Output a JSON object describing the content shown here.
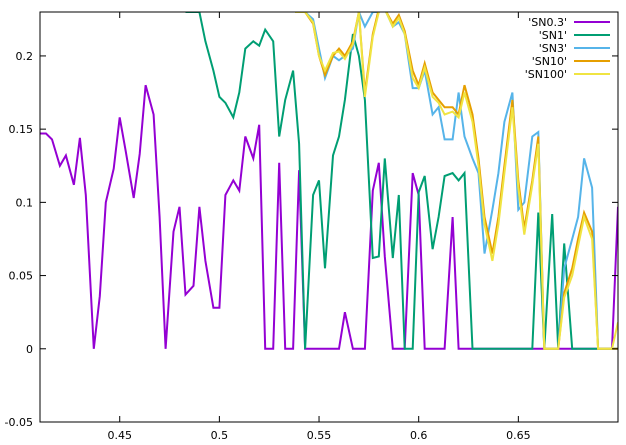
{
  "chart_data": {
    "type": "line",
    "title": "",
    "xlabel": "",
    "ylabel": "",
    "xlim": [
      0.41,
      0.7
    ],
    "ylim": [
      -0.05,
      0.23
    ],
    "xticks": [
      "0.45",
      "0.5",
      "0.55",
      "0.6",
      "0.65"
    ],
    "yticks": [
      "0.2",
      "0.15",
      "0.1",
      "0.05",
      "0",
      "-0.05"
    ],
    "xtick_values": [
      0.45,
      0.5,
      0.55,
      0.6,
      0.65
    ],
    "ytick_values": [
      0.2,
      0.15,
      0.1,
      0.05,
      0,
      -0.05
    ],
    "legend_position": "top-right",
    "grid": false,
    "series": [
      {
        "name": "'SN0.3'",
        "color": "#9400d3",
        "x": [
          0.41,
          0.413,
          0.416,
          0.42,
          0.423,
          0.427,
          0.43,
          0.433,
          0.437,
          0.44,
          0.443,
          0.447,
          0.45,
          0.453,
          0.457,
          0.46,
          0.463,
          0.467,
          0.47,
          0.473,
          0.477,
          0.48,
          0.483,
          0.487,
          0.49,
          0.493,
          0.497,
          0.5,
          0.503,
          0.507,
          0.51,
          0.513,
          0.517,
          0.52,
          0.523,
          0.527,
          0.53,
          0.533,
          0.537,
          0.54,
          0.543,
          0.547,
          0.55,
          0.553,
          0.557,
          0.56,
          0.563,
          0.567,
          0.57,
          0.573,
          0.577,
          0.58,
          0.583,
          0.587,
          0.59,
          0.593,
          0.597,
          0.6,
          0.603,
          0.607,
          0.61,
          0.613,
          0.617,
          0.62,
          0.623,
          0.627,
          0.63,
          0.633,
          0.637,
          0.64,
          0.643,
          0.647,
          0.65,
          0.653,
          0.657,
          0.66,
          0.663,
          0.667,
          0.67,
          0.673,
          0.677,
          0.68,
          0.683,
          0.687,
          0.69,
          0.693,
          0.697,
          0.7
        ],
        "y": [
          0.147,
          0.147,
          0.143,
          0.125,
          0.132,
          0.112,
          0.144,
          0.105,
          0.0,
          0.036,
          0.1,
          0.123,
          0.158,
          0.135,
          0.103,
          0.133,
          0.18,
          0.16,
          0.09,
          0.0,
          0.08,
          0.097,
          0.037,
          0.043,
          0.097,
          0.06,
          0.028,
          0.028,
          0.105,
          0.115,
          0.108,
          0.145,
          0.13,
          0.153,
          0.0,
          0.0,
          0.127,
          0.0,
          0.0,
          0.122,
          0.0,
          0.0,
          0.0,
          0.0,
          0.0,
          0.0,
          0.025,
          0.0,
          0.0,
          0.0,
          0.108,
          0.127,
          0.063,
          0.0,
          0.0,
          0.0,
          0.12,
          0.105,
          0.0,
          0.0,
          0.0,
          0.0,
          0.09,
          0.0,
          0.0,
          0.0,
          0.0,
          0.0,
          0.0,
          0.0,
          0.0,
          0.0,
          0.0,
          0.0,
          0.0,
          0.0,
          0.0,
          0.0,
          0.0,
          0.0,
          0.0,
          0.0,
          0.0,
          0.0,
          0.0,
          0.0,
          0.0,
          0.097
        ]
      },
      {
        "name": "'SN1'",
        "color": "#009e73",
        "x": [
          0.483,
          0.487,
          0.49,
          0.493,
          0.497,
          0.5,
          0.503,
          0.507,
          0.51,
          0.513,
          0.517,
          0.52,
          0.523,
          0.527,
          0.53,
          0.533,
          0.537,
          0.54,
          0.543,
          0.547,
          0.55,
          0.553,
          0.557,
          0.56,
          0.563,
          0.567,
          0.57,
          0.573,
          0.577,
          0.58,
          0.583,
          0.587,
          0.59,
          0.593,
          0.597,
          0.6,
          0.603,
          0.607,
          0.61,
          0.613,
          0.617,
          0.62,
          0.623,
          0.627,
          0.63,
          0.633,
          0.637,
          0.64,
          0.643,
          0.647,
          0.65,
          0.653,
          0.657,
          0.66,
          0.663,
          0.667,
          0.67,
          0.673,
          0.677,
          0.68,
          0.683,
          0.687,
          0.69,
          0.693,
          0.697,
          0.7
        ],
        "y": [
          0.23,
          0.23,
          0.23,
          0.21,
          0.19,
          0.172,
          0.168,
          0.158,
          0.175,
          0.205,
          0.21,
          0.207,
          0.218,
          0.21,
          0.145,
          0.17,
          0.19,
          0.14,
          0.0,
          0.105,
          0.115,
          0.055,
          0.132,
          0.145,
          0.17,
          0.215,
          0.2,
          0.17,
          0.062,
          0.063,
          0.13,
          0.062,
          0.105,
          0.0,
          0.0,
          0.107,
          0.118,
          0.068,
          0.09,
          0.118,
          0.12,
          0.115,
          0.12,
          0.0,
          0.0,
          0.0,
          0.0,
          0.0,
          0.0,
          0.0,
          0.0,
          0.0,
          0.0,
          0.093,
          0.0,
          0.092,
          0.0,
          0.072,
          0.0,
          0.0,
          0.0,
          0.0,
          0.0,
          0.0,
          0.0,
          0.0
        ]
      },
      {
        "name": "'SN3'",
        "color": "#56b4e9",
        "x": [
          0.538,
          0.54,
          0.543,
          0.547,
          0.55,
          0.553,
          0.557,
          0.56,
          0.563,
          0.567,
          0.57,
          0.573,
          0.577,
          0.58,
          0.583,
          0.587,
          0.59,
          0.593,
          0.597,
          0.6,
          0.603,
          0.607,
          0.61,
          0.613,
          0.617,
          0.62,
          0.623,
          0.627,
          0.63,
          0.633,
          0.637,
          0.64,
          0.643,
          0.647,
          0.65,
          0.653,
          0.657,
          0.66,
          0.663,
          0.667,
          0.67,
          0.673,
          0.677,
          0.68,
          0.683,
          0.687,
          0.69,
          0.693,
          0.697,
          0.7
        ],
        "y": [
          0.23,
          0.23,
          0.23,
          0.225,
          0.205,
          0.185,
          0.2,
          0.197,
          0.2,
          0.205,
          0.23,
          0.22,
          0.23,
          0.23,
          0.232,
          0.22,
          0.223,
          0.215,
          0.178,
          0.178,
          0.19,
          0.16,
          0.165,
          0.143,
          0.143,
          0.175,
          0.145,
          0.13,
          0.12,
          0.065,
          0.095,
          0.12,
          0.155,
          0.175,
          0.095,
          0.1,
          0.145,
          0.148,
          0.0,
          0.0,
          0.0,
          0.055,
          0.075,
          0.09,
          0.13,
          0.11,
          0.0,
          0.0,
          0.0,
          0.0
        ]
      },
      {
        "name": "'SN10'",
        "color": "#e69f00",
        "x": [
          0.538,
          0.54,
          0.543,
          0.547,
          0.55,
          0.553,
          0.557,
          0.56,
          0.563,
          0.567,
          0.57,
          0.573,
          0.577,
          0.58,
          0.583,
          0.587,
          0.59,
          0.593,
          0.597,
          0.6,
          0.603,
          0.607,
          0.61,
          0.613,
          0.617,
          0.62,
          0.623,
          0.627,
          0.63,
          0.633,
          0.637,
          0.64,
          0.643,
          0.647,
          0.65,
          0.653,
          0.657,
          0.66,
          0.663,
          0.667,
          0.67,
          0.673,
          0.677,
          0.68,
          0.683,
          0.687,
          0.69,
          0.693,
          0.697,
          0.7
        ],
        "y": [
          0.23,
          0.23,
          0.23,
          0.222,
          0.2,
          0.187,
          0.2,
          0.205,
          0.2,
          0.21,
          0.23,
          0.175,
          0.215,
          0.232,
          0.232,
          0.222,
          0.228,
          0.217,
          0.19,
          0.18,
          0.195,
          0.175,
          0.17,
          0.165,
          0.165,
          0.16,
          0.18,
          0.16,
          0.13,
          0.09,
          0.065,
          0.09,
          0.125,
          0.17,
          0.115,
          0.082,
          0.115,
          0.145,
          0.0,
          0.0,
          0.0,
          0.038,
          0.055,
          0.075,
          0.093,
          0.08,
          0.0,
          0.0,
          0.0,
          0.0
        ]
      },
      {
        "name": "'SN100'",
        "color": "#f0e442",
        "x": [
          0.538,
          0.54,
          0.543,
          0.547,
          0.55,
          0.553,
          0.557,
          0.56,
          0.563,
          0.567,
          0.57,
          0.573,
          0.577,
          0.58,
          0.583,
          0.587,
          0.59,
          0.593,
          0.597,
          0.6,
          0.603,
          0.607,
          0.61,
          0.613,
          0.617,
          0.62,
          0.623,
          0.627,
          0.63,
          0.633,
          0.637,
          0.64,
          0.643,
          0.647,
          0.65,
          0.653,
          0.657,
          0.66,
          0.663,
          0.667,
          0.67,
          0.673,
          0.677,
          0.68,
          0.683,
          0.687,
          0.69,
          0.693,
          0.697,
          0.7
        ],
        "y": [
          0.23,
          0.23,
          0.23,
          0.223,
          0.2,
          0.19,
          0.202,
          0.203,
          0.198,
          0.208,
          0.23,
          0.172,
          0.213,
          0.23,
          0.232,
          0.22,
          0.226,
          0.215,
          0.185,
          0.178,
          0.192,
          0.172,
          0.168,
          0.16,
          0.162,
          0.158,
          0.175,
          0.155,
          0.125,
          0.085,
          0.06,
          0.085,
          0.12,
          0.165,
          0.11,
          0.078,
          0.112,
          0.14,
          0.0,
          0.0,
          0.0,
          0.035,
          0.05,
          0.07,
          0.09,
          0.075,
          0.0,
          0.0,
          0.0,
          0.018
        ]
      }
    ]
  }
}
